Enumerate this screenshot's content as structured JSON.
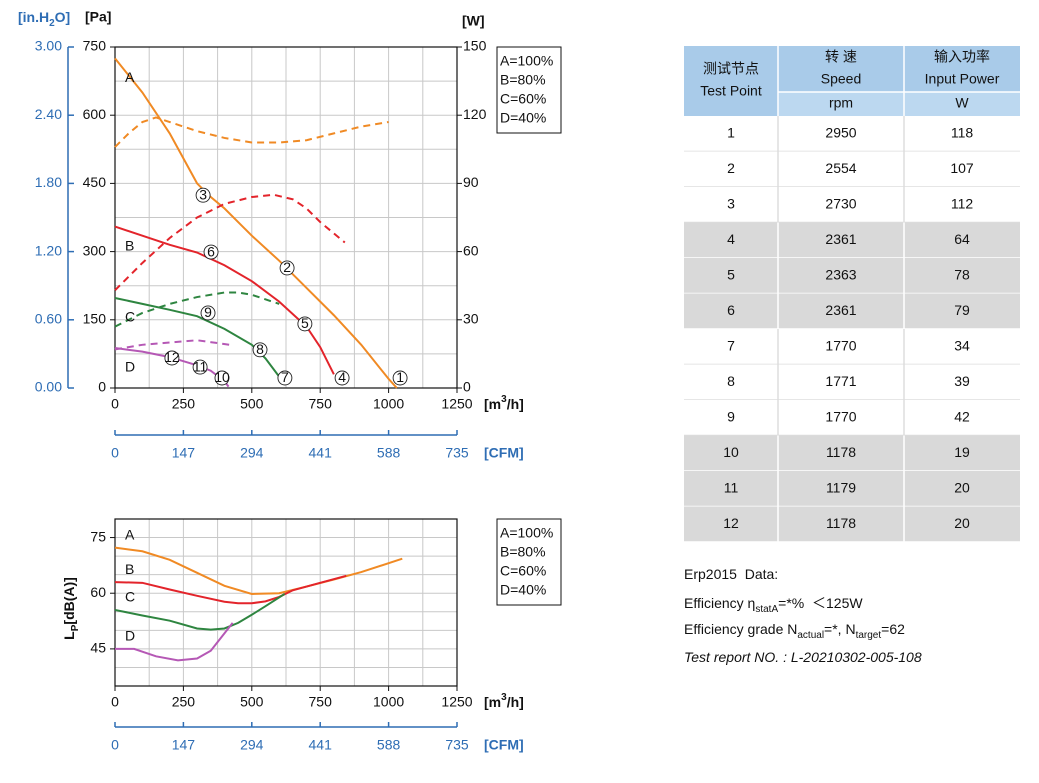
{
  "chart_data": [
    {
      "type": "line",
      "xlim": [
        0,
        1250
      ],
      "xticks": [
        0,
        250,
        500,
        750,
        1000,
        1250
      ],
      "xminor": [
        125,
        375,
        625,
        875,
        1125
      ],
      "xlabel": [
        {
          "text": "[m"
        },
        {
          "text": "3",
          "sup": true
        },
        {
          "text": "/h]"
        }
      ],
      "x2lim": [
        0,
        735
      ],
      "x2ticks": [
        0,
        147,
        294,
        441,
        588,
        735
      ],
      "x2label": "[CFM]",
      "ylim": [
        0,
        750
      ],
      "yticks": [
        0,
        150,
        300,
        450,
        600,
        750
      ],
      "yminor": [
        75,
        225,
        375,
        525,
        675
      ],
      "ylabel": "[Pa]",
      "y2lim": [
        0,
        150
      ],
      "y2ticks": [
        0,
        30,
        60,
        90,
        120,
        150
      ],
      "y2label": "[W]",
      "y3lim": [
        0,
        3
      ],
      "y3ticks": [
        {
          "value": 0,
          "label": "0.00"
        },
        {
          "value": 0.6,
          "label": "0.60"
        },
        {
          "value": 1.2,
          "label": "1.20"
        },
        {
          "value": 1.8,
          "label": "1.80"
        },
        {
          "value": 2.4,
          "label": "2.40"
        },
        {
          "value": 3,
          "label": "3.00"
        }
      ],
      "y3label": [
        {
          "text": "[in.H"
        },
        {
          "text": "2",
          "sub": true
        },
        {
          "text": "O]"
        }
      ],
      "grid": true,
      "series": [
        {
          "name": "A=100%",
          "label": "A",
          "color": "#f08a24",
          "x": [
            0,
            100,
            200,
            300,
            350,
            400,
            500,
            600,
            700,
            800,
            900,
            1000,
            1030
          ],
          "values": [
            725,
            650,
            560,
            450,
            420,
            395,
            335,
            280,
            220,
            160,
            95,
            20,
            0
          ],
          "power": {
            "axis": "y2",
            "x": [
              0,
              50,
              100,
              150,
              200,
              300,
              400,
              500,
              600,
              700,
              800,
              900,
              1000
            ],
            "values": [
              106,
              112,
              117,
              119,
              117,
              113,
              110,
              108,
              108,
              109,
              112,
              115,
              117
            ]
          }
        },
        {
          "name": "B=80%",
          "label": "B",
          "color": "#e3242b",
          "x": [
            0,
            100,
            200,
            300,
            400,
            500,
            600,
            700,
            750,
            800
          ],
          "values": [
            355,
            335,
            315,
            298,
            270,
            235,
            190,
            135,
            90,
            30
          ],
          "power": {
            "axis": "y2",
            "x": [
              0,
              100,
              200,
              300,
              400,
              500,
              580,
              650,
              700,
              750,
              840
            ],
            "values": [
              43,
              55,
              66,
              75,
              81,
              84,
              85,
              83,
              79,
              73,
              64
            ]
          }
        },
        {
          "name": "C=60%",
          "label": "C",
          "color": "#2e8540",
          "x": [
            0,
            100,
            200,
            300,
            400,
            500,
            550,
            600
          ],
          "values": [
            198,
            185,
            172,
            158,
            130,
            95,
            65,
            25
          ],
          "power": {
            "axis": "y2",
            "x": [
              0,
              100,
              200,
              300,
              400,
              450,
              500,
              600
            ],
            "values": [
              27,
              33,
              37,
              40,
              42,
              42,
              41,
              37
            ]
          }
        },
        {
          "name": "D=40%",
          "label": "D",
          "color": "#b558b5",
          "x": [
            0,
            100,
            200,
            300,
            350,
            400,
            415
          ],
          "values": [
            88,
            80,
            68,
            50,
            38,
            15,
            3
          ],
          "power": {
            "axis": "y2",
            "x": [
              0,
              100,
              200,
              300,
              420
            ],
            "values": [
              17,
              19,
              20,
              21,
              19
            ]
          }
        }
      ],
      "test_points": [
        {
          "label": 1,
          "x": 1042,
          "y": 22
        },
        {
          "label": 2,
          "x": 629,
          "y": 264
        },
        {
          "label": 3,
          "x": 322,
          "y": 424
        },
        {
          "label": 4,
          "x": 830,
          "y": 22
        },
        {
          "label": 5,
          "x": 694,
          "y": 141
        },
        {
          "label": 6,
          "x": 351,
          "y": 299
        },
        {
          "label": 7,
          "x": 621,
          "y": 22
        },
        {
          "label": 8,
          "x": 530,
          "y": 84
        },
        {
          "label": 9,
          "x": 340,
          "y": 165
        },
        {
          "label": 10,
          "x": 391,
          "y": 22
        },
        {
          "label": 11,
          "x": 311,
          "y": 46
        },
        {
          "label": 12,
          "x": 208,
          "y": 66
        }
      ]
    },
    {
      "type": "line",
      "xlim": [
        0,
        1250
      ],
      "xticks": [
        0,
        250,
        500,
        750,
        1000,
        1250
      ],
      "xminor": [
        125,
        375,
        625,
        875,
        1125
      ],
      "xlabel": [
        {
          "text": "[m"
        },
        {
          "text": "3",
          "sup": true
        },
        {
          "text": "/h]"
        }
      ],
      "x2lim": [
        0,
        735
      ],
      "x2ticks": [
        0,
        147,
        294,
        441,
        588,
        735
      ],
      "x2label": "[CFM]",
      "ylim": [
        35,
        80
      ],
      "yticks": [
        45,
        60,
        75
      ],
      "yminor": [
        40,
        50,
        55,
        65,
        70
      ],
      "ylabel": [
        {
          "text": "L"
        },
        {
          "text": "P",
          "sub": true
        },
        {
          "text": "[dB(A)]"
        }
      ],
      "grid": true,
      "series": [
        {
          "name": "A=100%",
          "label": "A",
          "color": "#f08a24",
          "x": [
            0,
            100,
            200,
            300,
            400,
            500,
            600,
            700,
            800,
            900,
            1050
          ],
          "values": [
            72.3,
            71.3,
            69,
            65.5,
            62,
            59.8,
            60,
            61.8,
            63.7,
            65.7,
            69.3
          ]
        },
        {
          "name": "B=80%",
          "label": "B",
          "color": "#e3242b",
          "x": [
            0,
            100,
            200,
            300,
            400,
            450,
            500,
            550,
            600,
            650,
            750,
            845
          ],
          "values": [
            63,
            62.8,
            61,
            59.3,
            57.7,
            57.3,
            57.3,
            57.8,
            59,
            60.8,
            62.8,
            64.7
          ]
        },
        {
          "name": "C=60%",
          "label": "C",
          "color": "#2e8540",
          "x": [
            0,
            100,
            200,
            300,
            350,
            400,
            450,
            500,
            550,
            620
          ],
          "values": [
            55.5,
            54,
            52.6,
            50.5,
            50.2,
            50.5,
            52,
            54.2,
            56.5,
            59.8
          ]
        },
        {
          "name": "D=40%",
          "label": "D",
          "color": "#b558b5",
          "x": [
            0,
            70,
            150,
            230,
            300,
            350,
            430
          ],
          "values": [
            45,
            45,
            43,
            41.9,
            42.4,
            44.5,
            52
          ]
        }
      ]
    }
  ],
  "table": {
    "header": [
      [
        "测试节点",
        "Test Point"
      ],
      [
        "转 速",
        "Speed",
        "rpm"
      ],
      [
        "输入功率",
        "Input Power",
        "W"
      ]
    ],
    "rows": [
      [
        1,
        2950,
        118
      ],
      [
        2,
        2554,
        107
      ],
      [
        3,
        2730,
        112
      ],
      [
        4,
        2361,
        64
      ],
      [
        5,
        2363,
        78
      ],
      [
        6,
        2361,
        79
      ],
      [
        7,
        1770,
        34
      ],
      [
        8,
        1771,
        39
      ],
      [
        9,
        1770,
        42
      ],
      [
        10,
        1178,
        19
      ],
      [
        11,
        1179,
        20
      ],
      [
        12,
        1178,
        20
      ]
    ],
    "shaded": [
      false,
      false,
      false,
      true,
      true,
      true,
      false,
      false,
      false,
      true,
      true,
      true
    ]
  },
  "erp": {
    "lines": [
      [
        {
          "text": "Erp2015  Data:"
        }
      ],
      [
        {
          "text": "Efficiency η"
        },
        {
          "text": "statA",
          "sub": true
        },
        {
          "text": "=*%  ＜125W"
        }
      ],
      [
        {
          "text": "Efficiency grade N"
        },
        {
          "text": "actual",
          "sub": true
        },
        {
          "text": "=*, N"
        },
        {
          "text": "target",
          "sub": true
        },
        {
          "text": "=62"
        }
      ],
      [
        {
          "text": "Test report NO. : L-20210302-005-108",
          "italic": true
        }
      ]
    ]
  }
}
